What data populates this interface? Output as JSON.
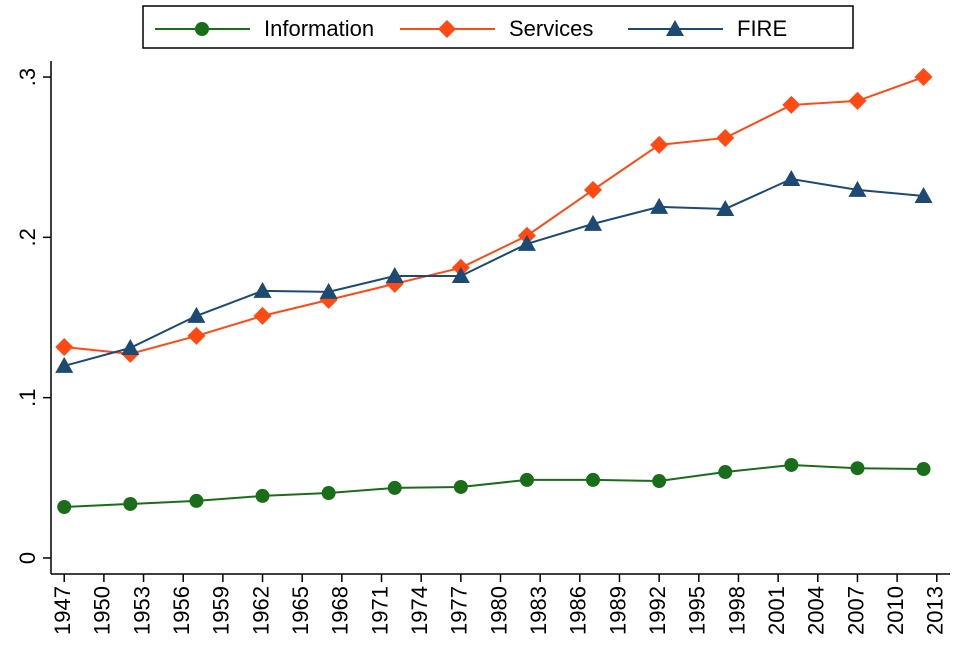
{
  "chart_data": {
    "type": "line",
    "x": [
      1947,
      1952,
      1957,
      1962,
      1967,
      1972,
      1977,
      1982,
      1987,
      1992,
      1997,
      2002,
      2007,
      2012
    ],
    "series": [
      {
        "name": "Information",
        "color": "#1a6e1a",
        "marker": "circle",
        "values": [
          0.0318,
          0.0337,
          0.0356,
          0.0387,
          0.0405,
          0.0437,
          0.0443,
          0.0487,
          0.0487,
          0.048,
          0.0536,
          0.058,
          0.056,
          0.0555
        ]
      },
      {
        "name": "Services",
        "color": "#ff4a14",
        "marker": "diamond",
        "values": [
          0.1316,
          0.1273,
          0.1385,
          0.151,
          0.161,
          0.171,
          0.181,
          0.201,
          0.2296,
          0.2577,
          0.262,
          0.2826,
          0.2851,
          0.3
        ]
      },
      {
        "name": "FIRE",
        "color": "#1c4a73",
        "marker": "triangle",
        "values": [
          0.1198,
          0.131,
          0.151,
          0.1666,
          0.166,
          0.1759,
          0.1759,
          0.1959,
          0.2084,
          0.219,
          0.2177,
          0.2364,
          0.2296,
          0.2258
        ]
      }
    ],
    "xlim": [
      1946,
      2014
    ],
    "xticks": [
      1947,
      1950,
      1953,
      1956,
      1959,
      1962,
      1965,
      1968,
      1971,
      1974,
      1977,
      1980,
      1983,
      1986,
      1989,
      1992,
      1995,
      1998,
      2001,
      2004,
      2007,
      2010,
      2013
    ],
    "ylim": [
      -0.01,
      0.31
    ],
    "yticks": [
      0,
      {
        "value": 0.1,
        "label": ".1"
      },
      {
        "value": 0.2,
        "label": ".2"
      },
      {
        "value": 0.3,
        "label": ".3"
      }
    ],
    "grid": false,
    "legend": "top"
  }
}
